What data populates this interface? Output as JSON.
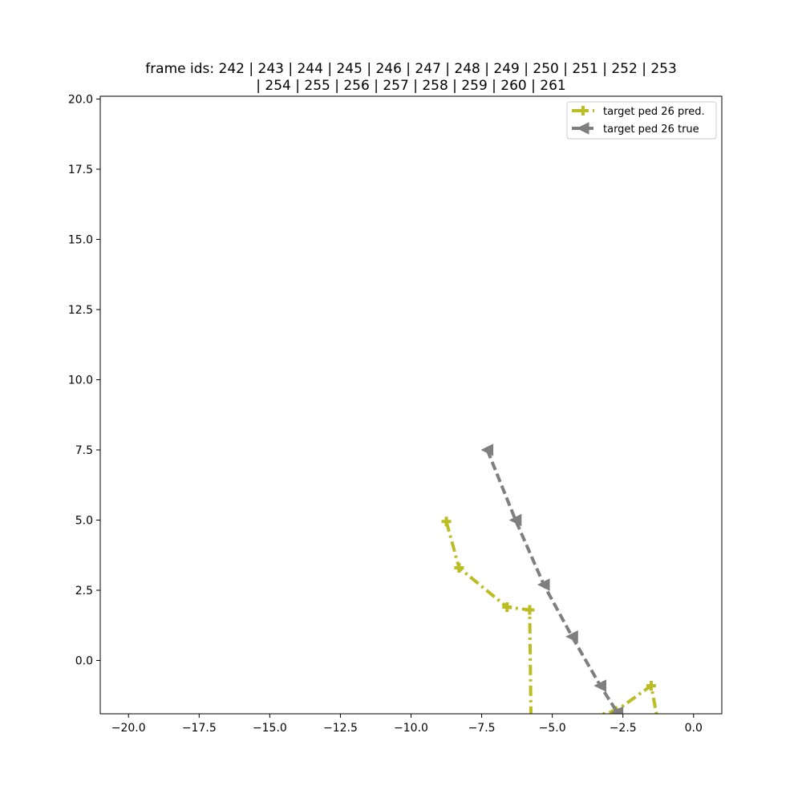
{
  "chart_data": {
    "type": "line",
    "title_lines": [
      "frame ids: 242 | 243 | 244 | 245 | 246 | 247 | 248 | 249 | 250 | 251 | 252 | 253",
      "| 254 | 255 | 256 | 257 | 258 | 259 | 260 | 261"
    ],
    "xlim": [
      -21,
      1
    ],
    "ylim": [
      -1.9,
      20.1
    ],
    "xticks": [
      -20,
      -17.5,
      -15,
      -12.5,
      -10,
      -7.5,
      -5,
      -2.5,
      0
    ],
    "xtick_labels": [
      "−20.0",
      "−17.5",
      "−15.0",
      "−12.5",
      "−10.0",
      "−7.5",
      "−5.0",
      "−2.5",
      "0.0"
    ],
    "yticks": [
      0,
      2.5,
      5,
      7.5,
      10,
      12.5,
      15,
      17.5,
      20
    ],
    "ytick_labels": [
      "0.0",
      "2.5",
      "5.0",
      "7.5",
      "10.0",
      "12.5",
      "15.0",
      "17.5",
      "20.0"
    ],
    "grid": false,
    "legend_position": "top-right",
    "series": [
      {
        "name": "target ped 26 pred.",
        "color": "#bcbd22",
        "marker": "plus",
        "linestyle": "dashdot",
        "points": [
          [
            -8.75,
            4.95
          ],
          [
            -8.3,
            3.3
          ],
          [
            -6.6,
            1.9
          ],
          [
            -5.8,
            1.8
          ],
          [
            -5.75,
            -2.5
          ],
          [
            -2.75,
            -1.8
          ],
          [
            -1.5,
            -0.9
          ],
          [
            -1.2,
            -2.5
          ]
        ]
      },
      {
        "name": "target ped 26 true",
        "color": "#7f7f7f",
        "marker": "triangle-left",
        "linestyle": "dashed",
        "points": [
          [
            -7.3,
            7.5
          ],
          [
            -6.3,
            5.0
          ],
          [
            -5.3,
            2.7
          ],
          [
            -4.3,
            0.85
          ],
          [
            -3.3,
            -0.9
          ],
          [
            -2.7,
            -1.85
          ],
          [
            -2.3,
            -2.5
          ]
        ]
      }
    ]
  }
}
